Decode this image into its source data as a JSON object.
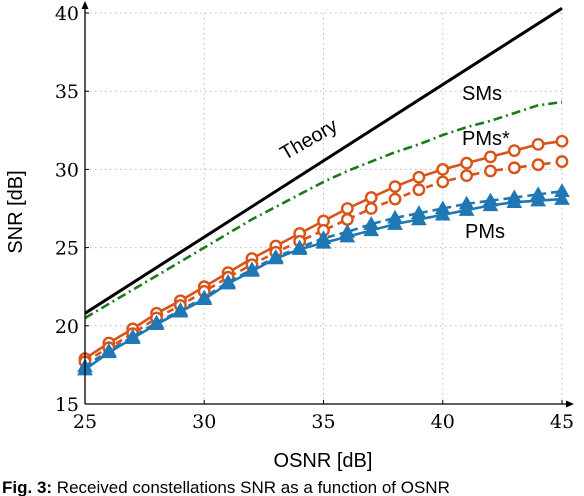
{
  "chart_data": {
    "type": "line",
    "xlabel": "OSNR [dB]",
    "ylabel": "SNR [dB]",
    "xlim": [
      25,
      45
    ],
    "ylim": [
      15,
      40
    ],
    "x_ticks": [
      25,
      30,
      35,
      40,
      45
    ],
    "y_ticks": [
      15,
      20,
      25,
      30,
      35,
      40
    ],
    "grid": "dotted",
    "annotations": [
      "Theory",
      "SMs",
      "PMs*",
      "PMs"
    ],
    "colors": {
      "theory": "#000000",
      "sms": "#1a7a1a",
      "orange": "#d95319",
      "blue": "#1f77b4"
    },
    "series": [
      {
        "key": "theory",
        "style": "solid-black",
        "x": [
          25,
          45
        ],
        "y": [
          20.8,
          40.3
        ]
      },
      {
        "key": "sms",
        "style": "dashdot-green",
        "x": [
          25,
          26,
          27,
          28,
          29,
          30,
          31,
          32,
          33,
          34,
          35,
          36,
          37,
          38,
          39,
          40,
          41,
          42,
          43,
          44,
          45
        ],
        "y": [
          20.5,
          21.4,
          22.3,
          23.2,
          24.1,
          25.0,
          25.9,
          26.8,
          27.6,
          28.4,
          29.2,
          29.9,
          30.5,
          31.1,
          31.6,
          32.2,
          32.7,
          33.1,
          33.6,
          34.1,
          34.3
        ]
      },
      {
        "key": "orange-solid",
        "style": "solid-orange-circle",
        "x": [
          25,
          26,
          27,
          28,
          29,
          30,
          31,
          32,
          33,
          34,
          35,
          36,
          37,
          38,
          39,
          40,
          41,
          42,
          43,
          44,
          45
        ],
        "y": [
          17.9,
          18.9,
          19.8,
          20.8,
          21.6,
          22.5,
          23.4,
          24.3,
          25.1,
          25.9,
          26.7,
          27.5,
          28.2,
          28.9,
          29.5,
          30.0,
          30.4,
          30.8,
          31.2,
          31.6,
          31.8
        ]
      },
      {
        "key": "orange-dashed",
        "style": "dashed-orange-circle",
        "x": [
          25,
          26,
          27,
          28,
          29,
          30,
          31,
          32,
          33,
          34,
          35,
          36,
          37,
          38,
          39,
          40,
          41,
          42,
          43,
          44,
          45
        ],
        "y": [
          17.7,
          18.6,
          19.5,
          20.5,
          21.3,
          22.2,
          23.1,
          23.9,
          24.7,
          25.4,
          26.1,
          26.8,
          27.5,
          28.1,
          28.7,
          29.2,
          29.6,
          29.9,
          30.1,
          30.3,
          30.5
        ]
      },
      {
        "key": "blue-dashed",
        "style": "dashed-blue-triangle",
        "x": [
          25,
          26,
          27,
          28,
          29,
          30,
          31,
          32,
          33,
          34,
          35,
          36,
          37,
          38,
          39,
          40,
          41,
          42,
          43,
          44,
          45
        ],
        "y": [
          17.4,
          18.4,
          19.3,
          20.2,
          21.0,
          21.8,
          22.8,
          23.6,
          24.4,
          25.0,
          25.6,
          26.0,
          26.5,
          26.9,
          27.2,
          27.5,
          27.8,
          28.0,
          28.2,
          28.4,
          28.6
        ]
      },
      {
        "key": "blue-solid",
        "style": "solid-blue-triangle",
        "x": [
          25,
          26,
          27,
          28,
          29,
          30,
          31,
          32,
          33,
          34,
          35,
          36,
          37,
          38,
          39,
          40,
          41,
          42,
          43,
          44,
          45
        ],
        "y": [
          17.2,
          18.3,
          19.2,
          20.1,
          20.9,
          21.7,
          22.7,
          23.5,
          24.3,
          24.9,
          25.3,
          25.7,
          26.1,
          26.5,
          26.8,
          27.1,
          27.4,
          27.7,
          27.9,
          28.0,
          28.1
        ]
      }
    ]
  },
  "caption": {
    "label": "Fig. 3:",
    "text": " Received constellations SNR as a function of OSNR"
  }
}
